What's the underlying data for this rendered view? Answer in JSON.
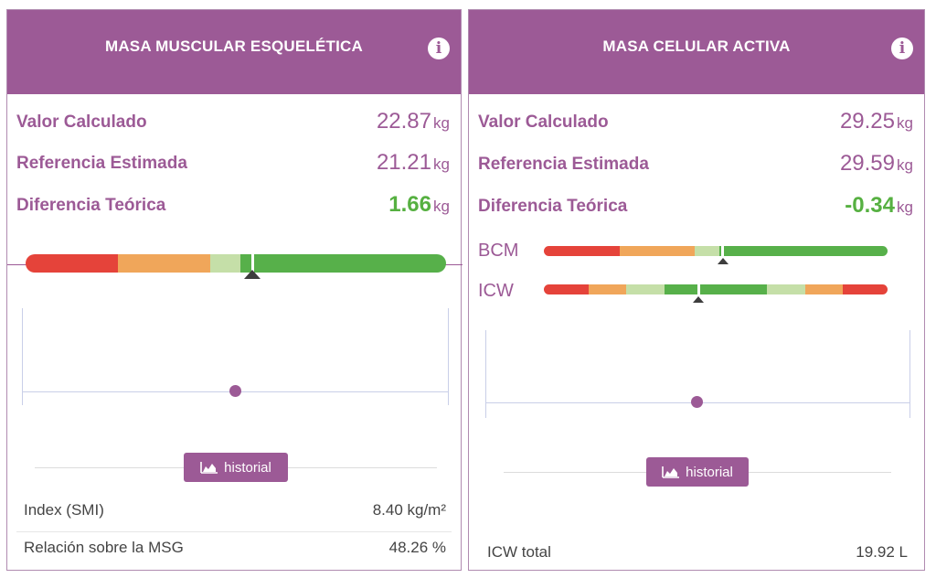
{
  "left_card": {
    "title": "MASA MUSCULAR ESQUELÉTICA",
    "rows": [
      {
        "label": "Valor Calculado",
        "value": "22.87",
        "unit": "kg"
      },
      {
        "label": "Referencia Estimada",
        "value": "21.21",
        "unit": "kg"
      },
      {
        "label": "Diferencia Teórica",
        "value": "1.66",
        "unit": "kg"
      }
    ],
    "scale": {
      "segments": [
        {
          "color": "#e5433a",
          "fraction": 0.22
        },
        {
          "color": "#f0a65a",
          "fraction": 0.22
        },
        {
          "color": "#c5dfa8",
          "fraction": 0.07
        },
        {
          "color": "#57b04a",
          "fraction": 0.49
        }
      ],
      "marker_fraction": 0.54
    },
    "history_button": "historial",
    "footer": [
      {
        "label": "Index (SMI)",
        "value": "8.40 kg/m²"
      },
      {
        "label": "Relación sobre la MSG",
        "value": "48.26 %"
      }
    ]
  },
  "right_card": {
    "title": "MASA CELULAR ACTIVA",
    "rows": [
      {
        "label": "Valor Calculado",
        "value": "29.25",
        "unit": "kg"
      },
      {
        "label": "Referencia Estimada",
        "value": "29.59",
        "unit": "kg"
      },
      {
        "label": "Diferencia Teórica",
        "value": "-0.34",
        "unit": "kg"
      }
    ],
    "bcm_label": "BCM",
    "icw_label": "ICW",
    "bcm_scale": {
      "segments": [
        {
          "color": "#e5433a",
          "fraction": 0.22
        },
        {
          "color": "#f0a65a",
          "fraction": 0.22
        },
        {
          "color": "#c5dfa8",
          "fraction": 0.07
        },
        {
          "color": "#57b04a",
          "fraction": 0.49
        }
      ],
      "marker_fraction": 0.52
    },
    "icw_scale": {
      "segments": [
        {
          "color": "#e5433a",
          "fraction": 0.13
        },
        {
          "color": "#f0a65a",
          "fraction": 0.11
        },
        {
          "color": "#c5dfa8",
          "fraction": 0.11
        },
        {
          "color": "#57b04a",
          "fraction": 0.3
        },
        {
          "color": "#c5dfa8",
          "fraction": 0.11
        },
        {
          "color": "#f0a65a",
          "fraction": 0.11
        },
        {
          "color": "#e5433a",
          "fraction": 0.13
        }
      ],
      "marker_fraction": 0.45
    },
    "history_button": "historial",
    "footer": [
      {
        "label": "ICW total",
        "value": "19.92 L"
      }
    ]
  },
  "colors": {
    "brand": "#9c5a96",
    "positive": "#56b041"
  }
}
